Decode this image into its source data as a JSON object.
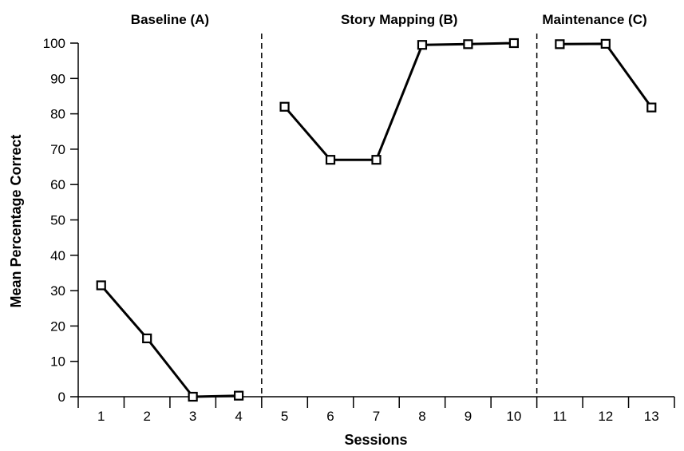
{
  "chart_data": {
    "type": "line",
    "xlabel": "Sessions",
    "ylabel": "Mean Percentage Correct",
    "ylim": [
      0,
      100
    ],
    "xlim": [
      0.5,
      13.5
    ],
    "y_ticks": [
      "0",
      "10",
      "20",
      "30",
      "40",
      "50",
      "60",
      "70",
      "80",
      "90",
      "100"
    ],
    "x_ticks": [
      "1",
      "2",
      "3",
      "4",
      "5",
      "6",
      "7",
      "8",
      "9",
      "10",
      "11",
      "12",
      "13"
    ],
    "grid": false,
    "phases": [
      {
        "label": "Baseline (A)",
        "sessions": [
          1,
          2,
          3,
          4
        ],
        "values": [
          31.5,
          16.5,
          0,
          0.3
        ]
      },
      {
        "label": "Story Mapping (B)",
        "sessions": [
          5,
          6,
          7,
          8,
          9,
          10
        ],
        "values": [
          82,
          67,
          67,
          99.5,
          99.7,
          100
        ]
      },
      {
        "label": "Maintenance (C)",
        "sessions": [
          11,
          12,
          13
        ],
        "values": [
          99.7,
          99.8,
          81.8
        ]
      }
    ],
    "phase_change_lines": [
      4.5,
      10.5
    ],
    "marker": "open-square",
    "line_color": "#000000"
  }
}
